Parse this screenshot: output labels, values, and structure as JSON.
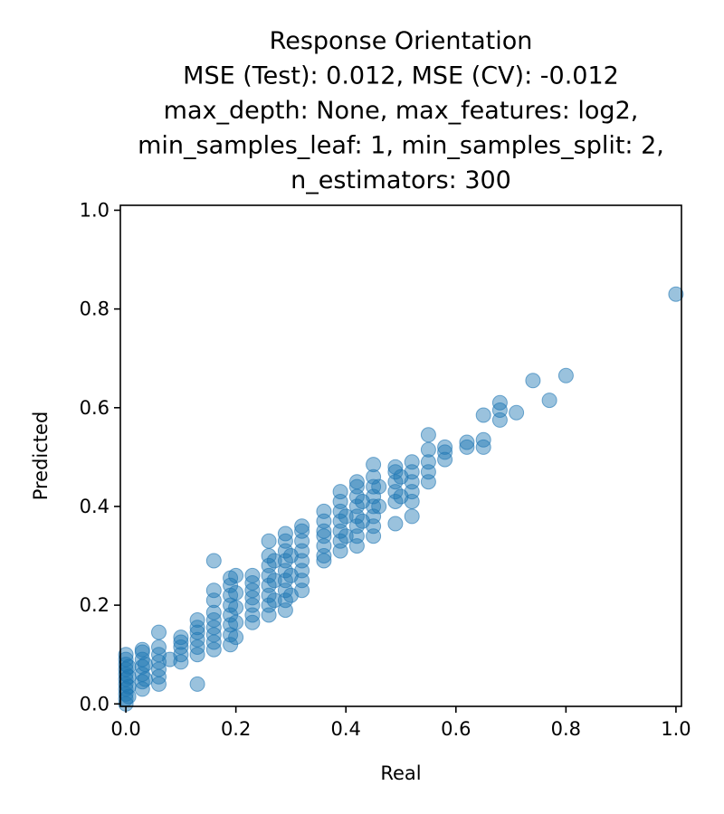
{
  "chart_data": {
    "type": "scatter",
    "title": [
      "Response Orientation",
      "MSE (Test): 0.012, MSE (CV): -0.012",
      "max_depth: None, max_features: log2,",
      "min_samples_leaf: 1, min_samples_split: 2,",
      "n_estimators: 300"
    ],
    "xlabel": "Real",
    "ylabel": "Predicted",
    "xlim": [
      -0.01,
      1.01
    ],
    "ylim": [
      -0.005,
      1.01
    ],
    "x_ticks": [
      "0.0",
      "0.2",
      "0.4",
      "0.6",
      "0.8",
      "1.0"
    ],
    "y_ticks": [
      "0.0",
      "0.2",
      "0.4",
      "0.6",
      "0.8",
      "1.0"
    ],
    "grid": false,
    "marker_color": "#1f77b4",
    "marker_alpha": 0.45,
    "points": [
      [
        0.0,
        0.0
      ],
      [
        0.0,
        0.01
      ],
      [
        0.0,
        0.02
      ],
      [
        0.0,
        0.03
      ],
      [
        0.0,
        0.04
      ],
      [
        0.0,
        0.05
      ],
      [
        0.0,
        0.06
      ],
      [
        0.0,
        0.07
      ],
      [
        0.0,
        0.08
      ],
      [
        0.0,
        0.09
      ],
      [
        0.0,
        0.1
      ],
      [
        0.005,
        0.015
      ],
      [
        0.005,
        0.035
      ],
      [
        0.005,
        0.055
      ],
      [
        0.005,
        0.075
      ],
      [
        0.03,
        0.03
      ],
      [
        0.03,
        0.045
      ],
      [
        0.03,
        0.06
      ],
      [
        0.03,
        0.075
      ],
      [
        0.03,
        0.09
      ],
      [
        0.03,
        0.105
      ],
      [
        0.03,
        0.11
      ],
      [
        0.035,
        0.05
      ],
      [
        0.035,
        0.08
      ],
      [
        0.06,
        0.04
      ],
      [
        0.06,
        0.055
      ],
      [
        0.06,
        0.07
      ],
      [
        0.06,
        0.085
      ],
      [
        0.06,
        0.1
      ],
      [
        0.06,
        0.115
      ],
      [
        0.06,
        0.145
      ],
      [
        0.08,
        0.09
      ],
      [
        0.1,
        0.085
      ],
      [
        0.1,
        0.1
      ],
      [
        0.1,
        0.115
      ],
      [
        0.1,
        0.125
      ],
      [
        0.1,
        0.135
      ],
      [
        0.13,
        0.04
      ],
      [
        0.13,
        0.1
      ],
      [
        0.13,
        0.115
      ],
      [
        0.13,
        0.13
      ],
      [
        0.13,
        0.145
      ],
      [
        0.13,
        0.155
      ],
      [
        0.13,
        0.17
      ],
      [
        0.16,
        0.11
      ],
      [
        0.16,
        0.125
      ],
      [
        0.16,
        0.14
      ],
      [
        0.16,
        0.155
      ],
      [
        0.16,
        0.17
      ],
      [
        0.16,
        0.185
      ],
      [
        0.16,
        0.21
      ],
      [
        0.16,
        0.23
      ],
      [
        0.16,
        0.29
      ],
      [
        0.19,
        0.12
      ],
      [
        0.19,
        0.14
      ],
      [
        0.19,
        0.16
      ],
      [
        0.19,
        0.18
      ],
      [
        0.19,
        0.2
      ],
      [
        0.19,
        0.22
      ],
      [
        0.19,
        0.24
      ],
      [
        0.19,
        0.255
      ],
      [
        0.2,
        0.135
      ],
      [
        0.2,
        0.165
      ],
      [
        0.2,
        0.195
      ],
      [
        0.2,
        0.225
      ],
      [
        0.2,
        0.26
      ],
      [
        0.23,
        0.165
      ],
      [
        0.23,
        0.18
      ],
      [
        0.23,
        0.2
      ],
      [
        0.23,
        0.215
      ],
      [
        0.23,
        0.23
      ],
      [
        0.23,
        0.245
      ],
      [
        0.23,
        0.26
      ],
      [
        0.26,
        0.18
      ],
      [
        0.26,
        0.2
      ],
      [
        0.26,
        0.22
      ],
      [
        0.26,
        0.24
      ],
      [
        0.26,
        0.26
      ],
      [
        0.26,
        0.28
      ],
      [
        0.26,
        0.3
      ],
      [
        0.26,
        0.33
      ],
      [
        0.27,
        0.21
      ],
      [
        0.27,
        0.25
      ],
      [
        0.27,
        0.29
      ],
      [
        0.29,
        0.19
      ],
      [
        0.29,
        0.21
      ],
      [
        0.29,
        0.23
      ],
      [
        0.29,
        0.25
      ],
      [
        0.29,
        0.27
      ],
      [
        0.29,
        0.29
      ],
      [
        0.29,
        0.31
      ],
      [
        0.29,
        0.33
      ],
      [
        0.29,
        0.345
      ],
      [
        0.3,
        0.22
      ],
      [
        0.3,
        0.26
      ],
      [
        0.3,
        0.3
      ],
      [
        0.32,
        0.23
      ],
      [
        0.32,
        0.25
      ],
      [
        0.32,
        0.27
      ],
      [
        0.32,
        0.29
      ],
      [
        0.32,
        0.31
      ],
      [
        0.32,
        0.33
      ],
      [
        0.32,
        0.35
      ],
      [
        0.32,
        0.36
      ],
      [
        0.36,
        0.29
      ],
      [
        0.36,
        0.3
      ],
      [
        0.36,
        0.32
      ],
      [
        0.36,
        0.34
      ],
      [
        0.36,
        0.35
      ],
      [
        0.36,
        0.37
      ],
      [
        0.36,
        0.39
      ],
      [
        0.39,
        0.31
      ],
      [
        0.39,
        0.33
      ],
      [
        0.39,
        0.35
      ],
      [
        0.39,
        0.37
      ],
      [
        0.39,
        0.39
      ],
      [
        0.39,
        0.41
      ],
      [
        0.39,
        0.43
      ],
      [
        0.4,
        0.34
      ],
      [
        0.4,
        0.38
      ],
      [
        0.42,
        0.32
      ],
      [
        0.42,
        0.34
      ],
      [
        0.42,
        0.36
      ],
      [
        0.42,
        0.38
      ],
      [
        0.42,
        0.4
      ],
      [
        0.42,
        0.42
      ],
      [
        0.42,
        0.44
      ],
      [
        0.42,
        0.45
      ],
      [
        0.43,
        0.37
      ],
      [
        0.43,
        0.41
      ],
      [
        0.45,
        0.34
      ],
      [
        0.45,
        0.36
      ],
      [
        0.45,
        0.38
      ],
      [
        0.45,
        0.4
      ],
      [
        0.45,
        0.42
      ],
      [
        0.45,
        0.44
      ],
      [
        0.45,
        0.46
      ],
      [
        0.45,
        0.485
      ],
      [
        0.46,
        0.4
      ],
      [
        0.46,
        0.44
      ],
      [
        0.49,
        0.365
      ],
      [
        0.49,
        0.41
      ],
      [
        0.49,
        0.43
      ],
      [
        0.49,
        0.45
      ],
      [
        0.49,
        0.47
      ],
      [
        0.49,
        0.48
      ],
      [
        0.5,
        0.42
      ],
      [
        0.5,
        0.46
      ],
      [
        0.52,
        0.38
      ],
      [
        0.52,
        0.41
      ],
      [
        0.52,
        0.43
      ],
      [
        0.52,
        0.45
      ],
      [
        0.52,
        0.47
      ],
      [
        0.52,
        0.49
      ],
      [
        0.55,
        0.45
      ],
      [
        0.55,
        0.47
      ],
      [
        0.55,
        0.49
      ],
      [
        0.55,
        0.515
      ],
      [
        0.55,
        0.545
      ],
      [
        0.58,
        0.495
      ],
      [
        0.58,
        0.51
      ],
      [
        0.58,
        0.52
      ],
      [
        0.62,
        0.52
      ],
      [
        0.62,
        0.53
      ],
      [
        0.65,
        0.52
      ],
      [
        0.65,
        0.535
      ],
      [
        0.65,
        0.585
      ],
      [
        0.68,
        0.575
      ],
      [
        0.68,
        0.595
      ],
      [
        0.68,
        0.61
      ],
      [
        0.71,
        0.59
      ],
      [
        0.74,
        0.655
      ],
      [
        0.77,
        0.615
      ],
      [
        0.8,
        0.665
      ],
      [
        1.0,
        0.83
      ]
    ]
  }
}
